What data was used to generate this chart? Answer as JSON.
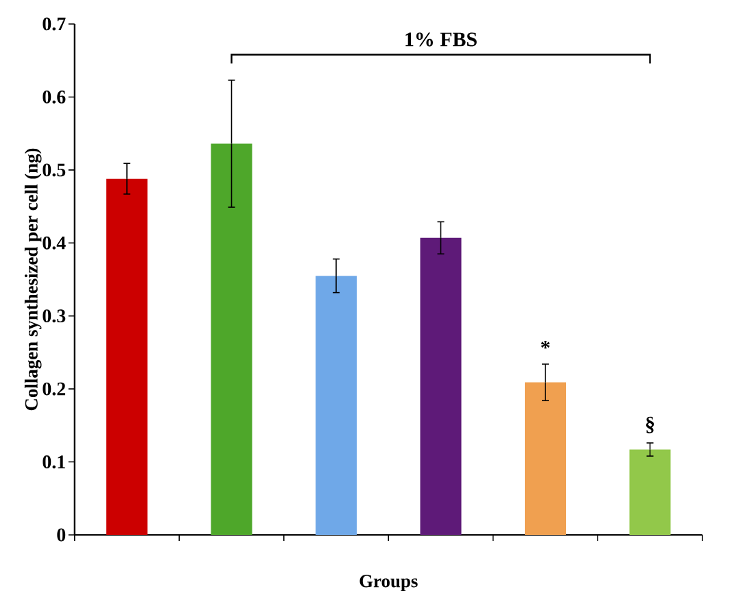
{
  "chart_data": {
    "type": "bar",
    "xlabel": "Groups",
    "ylabel": "Collagen synthesized per cell (ng)",
    "categories": [
      null,
      null,
      null,
      null,
      null,
      null
    ],
    "values": [
      0.488,
      0.536,
      0.355,
      0.407,
      0.209,
      0.117
    ],
    "errors": [
      0.021,
      0.087,
      0.023,
      0.022,
      0.025,
      0.009
    ],
    "colors": [
      "#cc0000",
      "#4ea72a",
      "#6fa8e8",
      "#5e1a78",
      "#f0a050",
      "#92c84a"
    ],
    "ylim": [
      0,
      0.7
    ],
    "yticks": [
      0,
      0.1,
      0.2,
      0.3,
      0.4,
      0.5,
      0.6,
      0.7
    ],
    "annotations": [
      "1% FBS",
      "*",
      "§"
    ]
  }
}
